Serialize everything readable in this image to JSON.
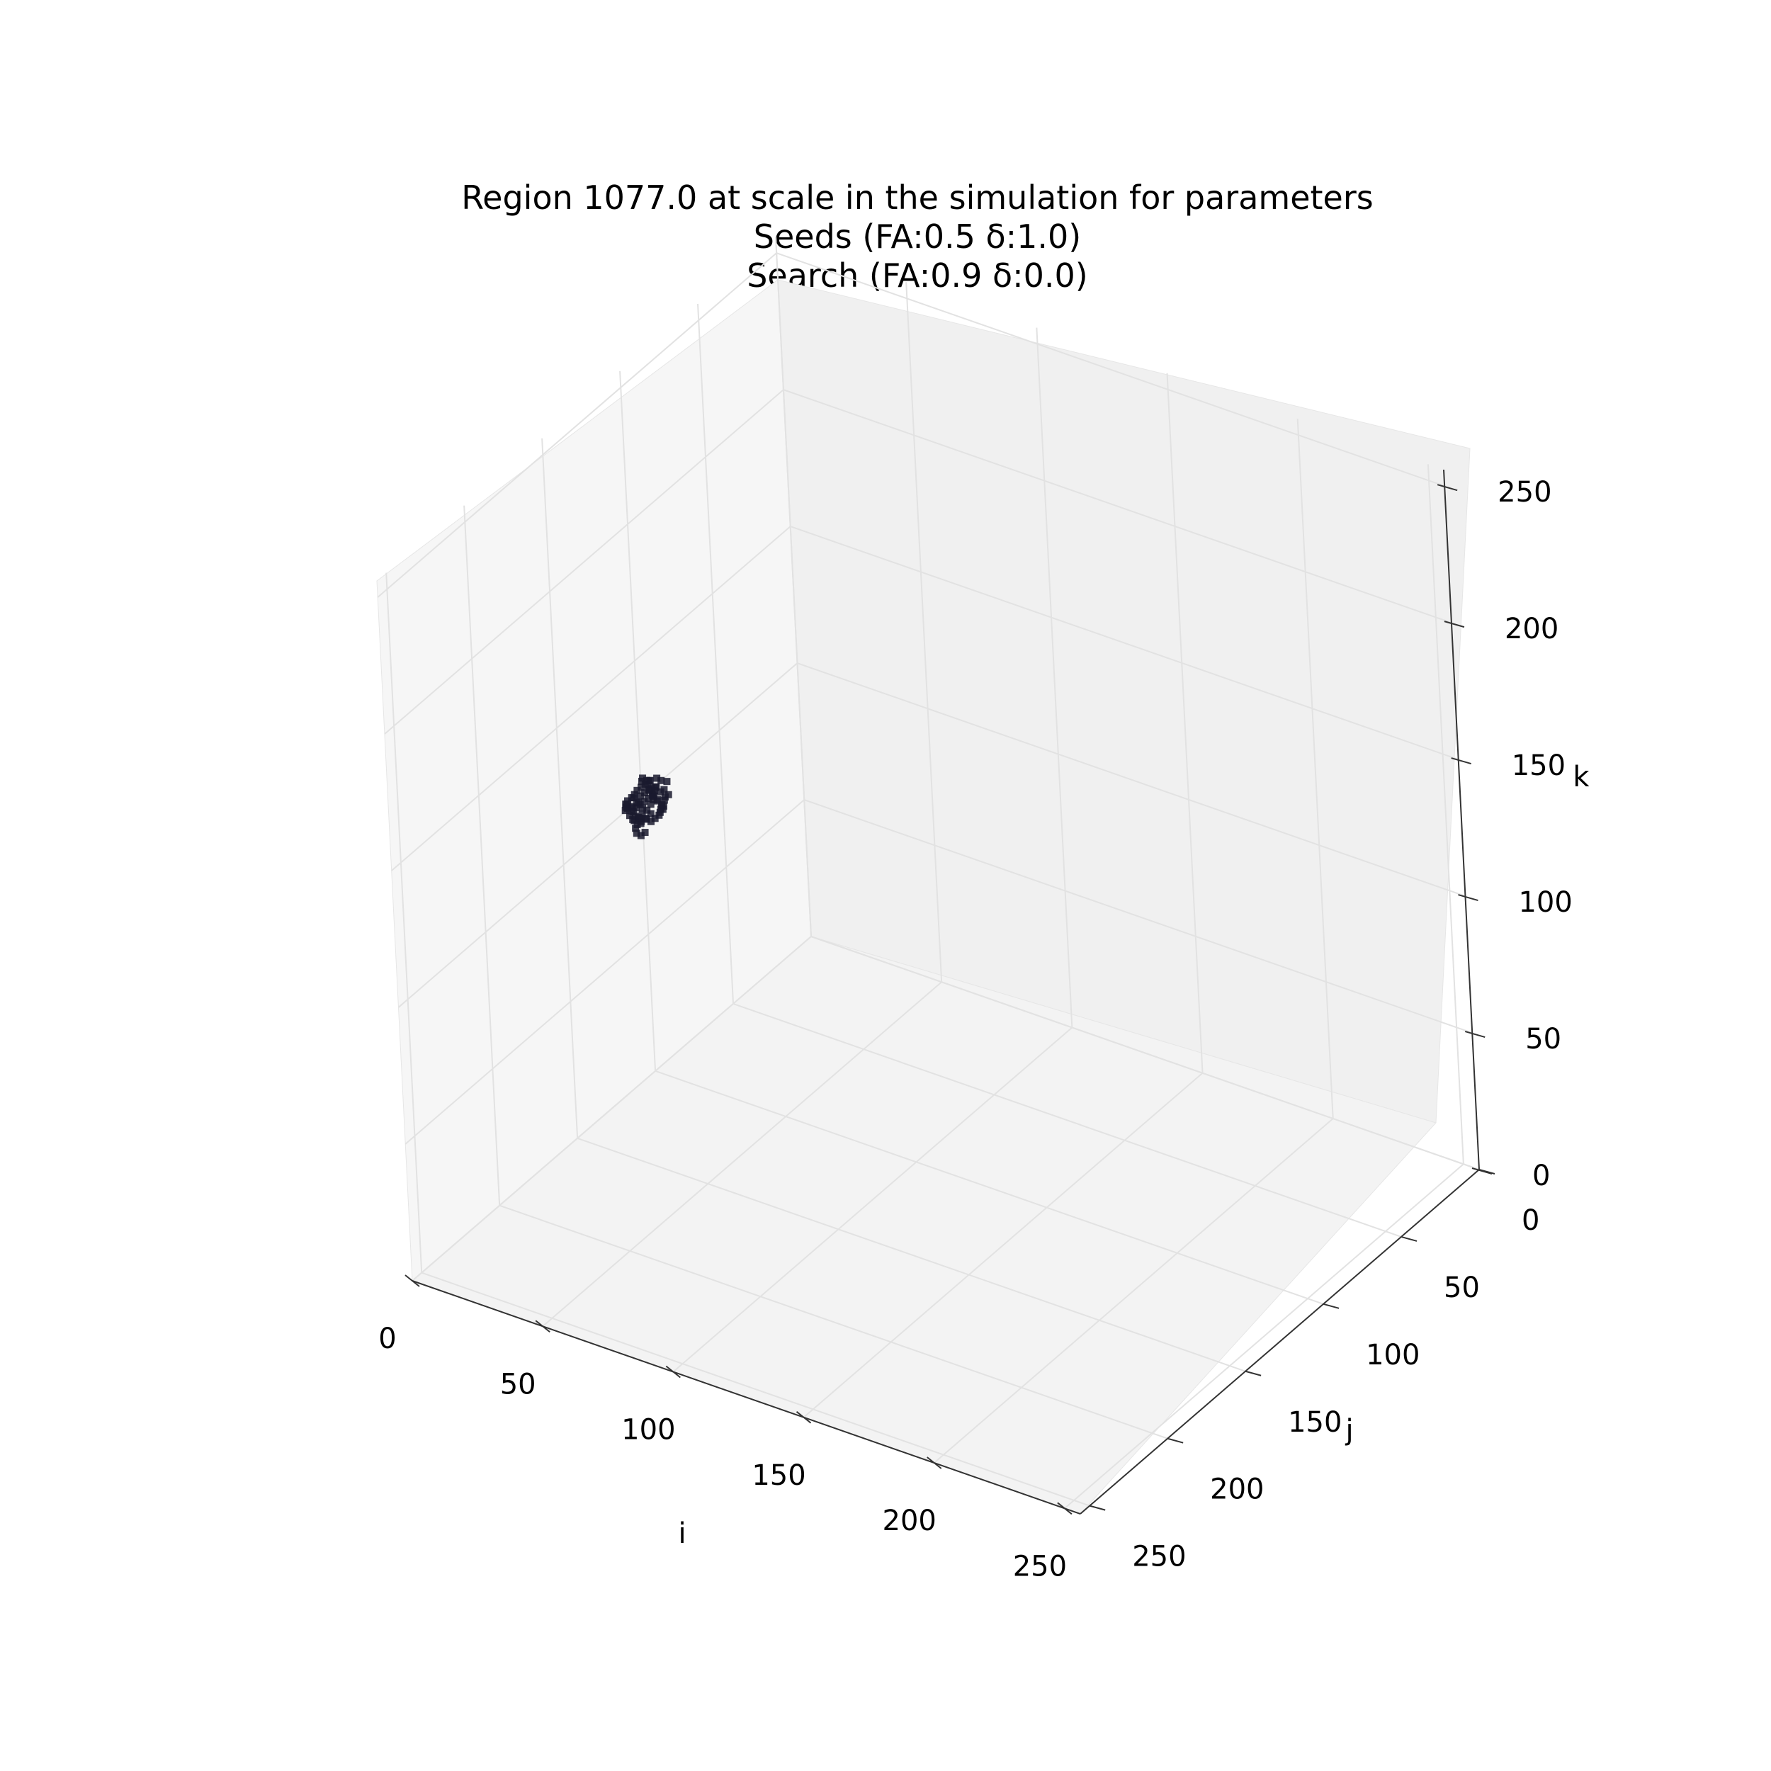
{
  "chart_data": {
    "type": "scatter",
    "projection": "3d",
    "title": "Region 1077.0 at scale in the simulation for parameters",
    "subtitle_lines": [
      "Seeds (FA:0.5 δ:1.0)",
      "Search (FA:0.9 δ:0.0)"
    ],
    "xlabel": "i",
    "ylabel": "j",
    "zlabel": "k",
    "xlim": [
      0,
      256
    ],
    "ylim": [
      0,
      256
    ],
    "zlim": [
      0,
      256
    ],
    "x_ticks": [
      "0",
      "50",
      "100",
      "150",
      "200",
      "250"
    ],
    "y_ticks": [
      "0",
      "50",
      "100",
      "150",
      "200",
      "250"
    ],
    "z_ticks": [
      "0",
      "50",
      "100",
      "150",
      "200",
      "250"
    ],
    "grid": true,
    "point_color": "#1a1a2e",
    "series": [
      {
        "cluster_center": [
          20,
          130,
          120
        ],
        "points": [
          [
            18,
            132,
            118
          ],
          [
            19,
            131,
            119
          ],
          [
            20,
            130,
            120
          ],
          [
            21,
            129,
            121
          ],
          [
            22,
            128,
            122
          ],
          [
            17,
            133,
            117
          ],
          [
            18,
            134,
            119
          ],
          [
            19,
            133,
            121
          ],
          [
            20,
            132,
            123
          ],
          [
            21,
            131,
            124
          ],
          [
            22,
            130,
            125
          ],
          [
            23,
            129,
            123
          ],
          [
            24,
            128,
            121
          ],
          [
            25,
            127,
            119
          ],
          [
            23,
            131,
            117
          ],
          [
            22,
            133,
            116
          ],
          [
            21,
            134,
            115
          ],
          [
            20,
            135,
            114
          ],
          [
            19,
            136,
            116
          ],
          [
            18,
            135,
            120
          ],
          [
            17,
            131,
            122
          ],
          [
            16,
            130,
            120
          ],
          [
            17,
            129,
            118
          ],
          [
            18,
            128,
            116
          ],
          [
            19,
            127,
            115
          ],
          [
            20,
            126,
            117
          ],
          [
            21,
            126,
            119
          ],
          [
            22,
            127,
            121
          ],
          [
            23,
            128,
            124
          ],
          [
            24,
            129,
            126
          ],
          [
            25,
            130,
            127
          ],
          [
            26,
            129,
            125
          ],
          [
            27,
            128,
            123
          ],
          [
            26,
            127,
            121
          ],
          [
            25,
            126,
            118
          ],
          [
            24,
            125,
            116
          ],
          [
            23,
            126,
            114
          ],
          [
            22,
            127,
            113
          ],
          [
            21,
            128,
            112
          ],
          [
            20,
            129,
            113
          ],
          [
            19,
            130,
            115
          ],
          [
            18,
            131,
            114
          ],
          [
            17,
            132,
            113
          ],
          [
            16,
            133,
            115
          ],
          [
            15,
            134,
            117
          ],
          [
            16,
            135,
            119
          ],
          [
            17,
            136,
            121
          ],
          [
            18,
            137,
            123
          ],
          [
            19,
            136,
            124
          ],
          [
            20,
            134,
            126
          ],
          [
            21,
            133,
            127
          ],
          [
            22,
            132,
            128
          ],
          [
            23,
            131,
            129
          ],
          [
            24,
            132,
            130
          ],
          [
            25,
            133,
            128
          ],
          [
            26,
            134,
            126
          ],
          [
            27,
            133,
            124
          ],
          [
            28,
            132,
            122
          ],
          [
            27,
            131,
            120
          ],
          [
            26,
            130,
            118
          ],
          [
            28,
            130,
            127
          ],
          [
            29,
            129,
            125
          ],
          [
            28,
            128,
            129
          ],
          [
            27,
            130,
            130
          ],
          [
            26,
            131,
            131
          ],
          [
            15,
            129,
            114
          ],
          [
            14,
            131,
            116
          ],
          [
            14,
            132,
            118
          ],
          [
            15,
            128,
            112
          ],
          [
            16,
            127,
            111
          ],
          [
            19,
            134,
            110
          ],
          [
            20,
            133,
            109
          ],
          [
            21,
            132,
            110
          ],
          [
            18,
            133,
            111
          ],
          [
            17,
            128,
            110
          ],
          [
            24,
            134,
            131
          ],
          [
            25,
            135,
            130
          ],
          [
            26,
            136,
            129
          ],
          [
            23,
            135,
            132
          ],
          [
            22,
            134,
            130
          ]
        ]
      }
    ]
  }
}
